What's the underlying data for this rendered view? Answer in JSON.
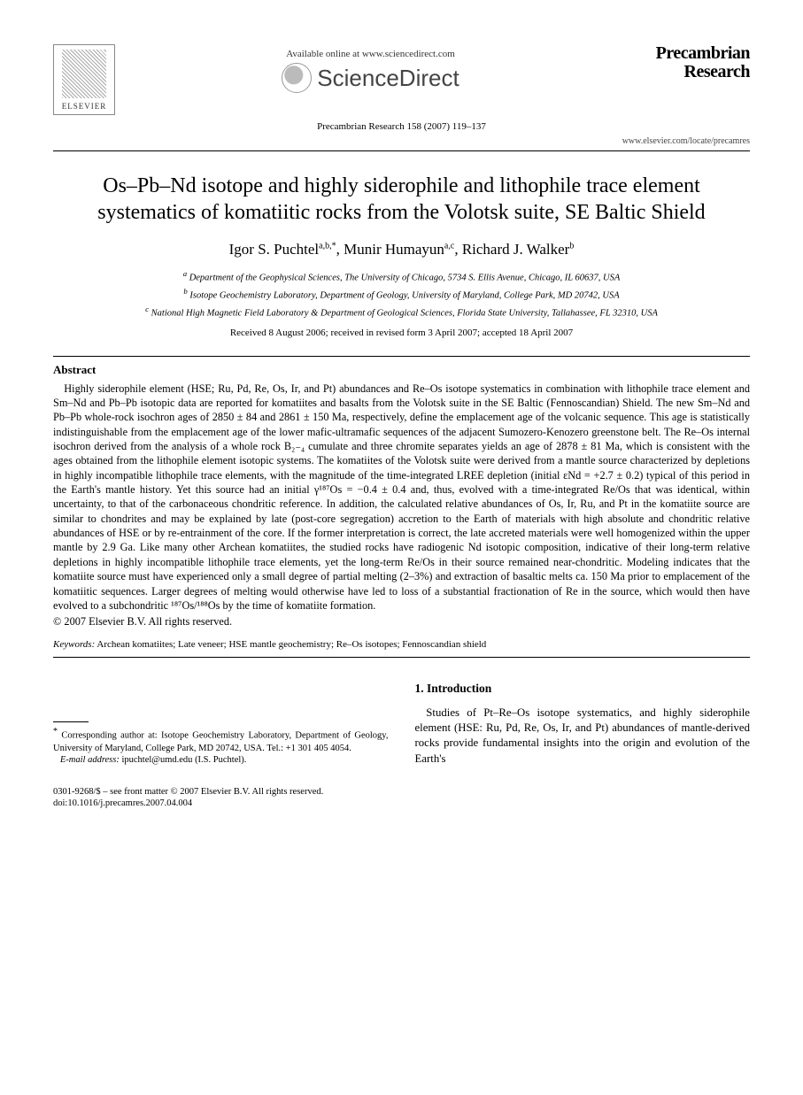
{
  "header": {
    "elsevier_label": "ELSEVIER",
    "available_line": "Available online at www.sciencedirect.com",
    "sd_brand": "ScienceDirect",
    "journal_name_line1": "Precambrian",
    "journal_name_line2": "Research",
    "citation": "Precambrian Research 158 (2007) 119–137",
    "locate_url": "www.elsevier.com/locate/precamres"
  },
  "title": "Os–Pb–Nd isotope and highly siderophile and lithophile trace element systematics of komatiitic rocks from the Volotsk suite, SE Baltic Shield",
  "authors": {
    "a1_name": "Igor S. Puchtel",
    "a1_aff": "a,b,",
    "a1_star": "*",
    "a2_name": "Munir Humayun",
    "a2_aff": "a,c",
    "a3_name": "Richard J. Walker",
    "a3_aff": "b"
  },
  "affiliations": {
    "a": "Department of the Geophysical Sciences, The University of Chicago, 5734 S. Ellis Avenue, Chicago, IL 60637, USA",
    "b": "Isotope Geochemistry Laboratory, Department of Geology, University of Maryland, College Park, MD 20742, USA",
    "c": "National High Magnetic Field Laboratory & Department of Geological Sciences, Florida State University, Tallahassee, FL 32310, USA"
  },
  "dates": "Received 8 August 2006; received in revised form 3 April 2007; accepted 18 April 2007",
  "abstract": {
    "heading": "Abstract",
    "body": "Highly siderophile element (HSE; Ru, Pd, Re, Os, Ir, and Pt) abundances and Re–Os isotope systematics in combination with lithophile trace element and Sm–Nd and Pb–Pb isotopic data are reported for komatiites and basalts from the Volotsk suite in the SE Baltic (Fennoscandian) Shield. The new Sm–Nd and Pb–Pb whole-rock isochron ages of 2850 ± 84 and 2861 ± 150 Ma, respectively, define the emplacement age of the volcanic sequence. This age is statistically indistinguishable from the emplacement age of the lower mafic-ultramafic sequences of the adjacent Sumozero-Kenozero greenstone belt. The Re–Os internal isochron derived from the analysis of a whole rock B₂₋₄ cumulate and three chromite separates yields an age of 2878 ± 81 Ma, which is consistent with the ages obtained from the lithophile element isotopic systems. The komatiites of the Volotsk suite were derived from a mantle source characterized by depletions in highly incompatible lithophile trace elements, with the magnitude of the time-integrated LREE depletion (initial εNd = +2.7 ± 0.2) typical of this period in the Earth's mantle history. Yet this source had an initial γ¹⁸⁷Os = −0.4 ± 0.4 and, thus, evolved with a time-integrated Re/Os that was identical, within uncertainty, to that of the carbonaceous chondritic reference. In addition, the calculated relative abundances of Os, Ir, Ru, and Pt in the komatiite source are similar to chondrites and may be explained by late (post-core segregation) accretion to the Earth of materials with high absolute and chondritic relative abundances of HSE or by re-entrainment of the core. If the former interpretation is correct, the late accreted materials were well homogenized within the upper mantle by 2.9 Ga. Like many other Archean komatiites, the studied rocks have radiogenic Nd isotopic composition, indicative of their long-term relative depletions in highly incompatible lithophile trace elements, yet the long-term Re/Os in their source remained near-chondritic. Modeling indicates that the komatiite source must have experienced only a small degree of partial melting (2–3%) and extraction of basaltic melts ca. 150 Ma prior to emplacement of the komatiitic sequences. Larger degrees of melting would otherwise have led to loss of a substantial fractionation of Re in the source, which would then have evolved to a subchondritic ¹⁸⁷Os/¹⁸⁸Os by the time of komatiite formation.",
    "copyright": "© 2007 Elsevier B.V. All rights reserved."
  },
  "keywords": {
    "label": "Keywords:",
    "text": "Archean komatiites; Late veneer; HSE mantle geochemistry; Re–Os isotopes; Fennoscandian shield"
  },
  "corresponding": {
    "star": "*",
    "text": "Corresponding author at: Isotope Geochemistry Laboratory, Department of Geology, University of Maryland, College Park, MD 20742, USA. Tel.: +1 301 405 4054.",
    "email_label": "E-mail address:",
    "email": "ipuchtel@umd.edu",
    "email_name": "(I.S. Puchtel)."
  },
  "introduction": {
    "heading": "1.  Introduction",
    "body": "Studies of Pt–Re–Os isotope systematics, and highly siderophile element (HSE: Ru, Pd, Re, Os, Ir, and Pt) abundances of mantle-derived rocks provide fundamental insights into the origin and evolution of the Earth's"
  },
  "footer": {
    "line1": "0301-9268/$ – see front matter © 2007 Elsevier B.V. All rights reserved.",
    "line2": "doi:10.1016/j.precamres.2007.04.004"
  },
  "colors": {
    "text": "#000000",
    "background": "#ffffff",
    "rule": "#000000",
    "muted": "#444444"
  },
  "typography": {
    "body_family": "Times New Roman",
    "title_size_pt": 18,
    "author_size_pt": 13,
    "abstract_size_pt": 9,
    "affil_size_pt": 8
  }
}
